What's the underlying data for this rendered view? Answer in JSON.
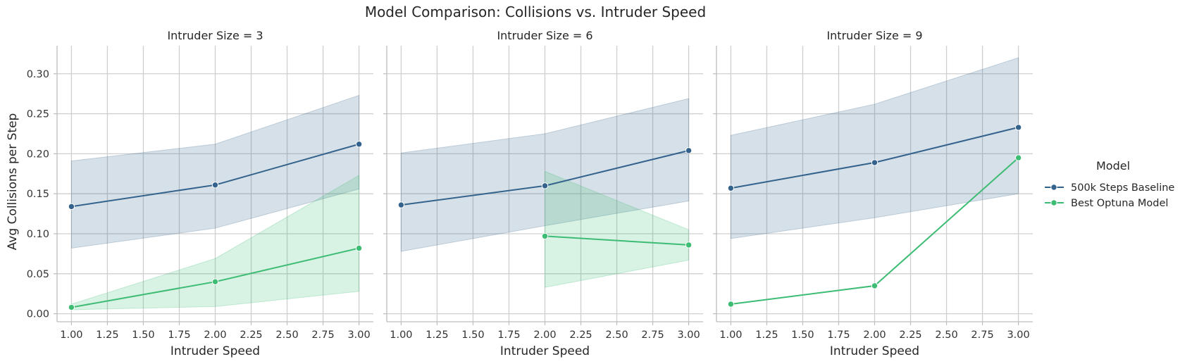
{
  "chart_data": {
    "type": "line",
    "title": "Model Comparison: Collisions vs. Intruder Speed",
    "xlabel": "Intruder Speed",
    "ylabel": "Avg Collisions per Step",
    "xlim": [
      0.9,
      3.1
    ],
    "ylim": [
      -0.01,
      0.335
    ],
    "xticks": [
      "1.00",
      "1.25",
      "1.50",
      "1.75",
      "2.00",
      "2.25",
      "2.50",
      "2.75",
      "3.00"
    ],
    "yticks": [
      "0.00",
      "0.05",
      "0.10",
      "0.15",
      "0.20",
      "0.25",
      "0.30"
    ],
    "grid": true,
    "legend": {
      "title": "Model",
      "placement": "right",
      "entries": [
        "500k Steps Baseline",
        "Best Optuna Model"
      ]
    },
    "colors": {
      "500k Steps Baseline": "#33638d",
      "Best Optuna Model": "#3dbc74"
    },
    "panels": [
      {
        "title": "Intruder Size = 3",
        "series": [
          {
            "name": "500k Steps Baseline",
            "x": [
              1,
              2,
              3
            ],
            "y": [
              0.134,
              0.161,
              0.212
            ],
            "ci_low": [
              0.082,
              0.107,
              0.156
            ],
            "ci_high": [
              0.191,
              0.212,
              0.273
            ]
          },
          {
            "name": "Best Optuna Model",
            "x": [
              1,
              2,
              3
            ],
            "y": [
              0.008,
              0.04,
              0.082
            ],
            "ci_low": [
              0.005,
              0.009,
              0.028
            ],
            "ci_high": [
              0.012,
              0.069,
              0.173
            ]
          }
        ]
      },
      {
        "title": "Intruder Size = 6",
        "series": [
          {
            "name": "500k Steps Baseline",
            "x": [
              1,
              2,
              3
            ],
            "y": [
              0.136,
              0.16,
              0.204
            ],
            "ci_low": [
              0.078,
              0.11,
              0.141
            ],
            "ci_high": [
              0.201,
              0.225,
              0.269
            ]
          },
          {
            "name": "Best Optuna Model",
            "x": [
              2,
              3
            ],
            "y": [
              0.097,
              0.086
            ],
            "ci_low": [
              0.033,
              0.067
            ],
            "ci_high": [
              0.178,
              0.105
            ]
          }
        ]
      },
      {
        "title": "Intruder Size = 9",
        "series": [
          {
            "name": "500k Steps Baseline",
            "x": [
              1,
              2,
              3
            ],
            "y": [
              0.157,
              0.189,
              0.233
            ],
            "ci_low": [
              0.094,
              0.12,
              0.15
            ],
            "ci_high": [
              0.223,
              0.262,
              0.32
            ]
          },
          {
            "name": "Best Optuna Model",
            "x": [
              1,
              2,
              3
            ],
            "y": [
              0.012,
              0.035,
              0.195
            ],
            "ci_low": [
              0.012,
              0.035,
              0.195
            ],
            "ci_high": [
              0.012,
              0.035,
              0.195
            ]
          }
        ]
      }
    ]
  }
}
